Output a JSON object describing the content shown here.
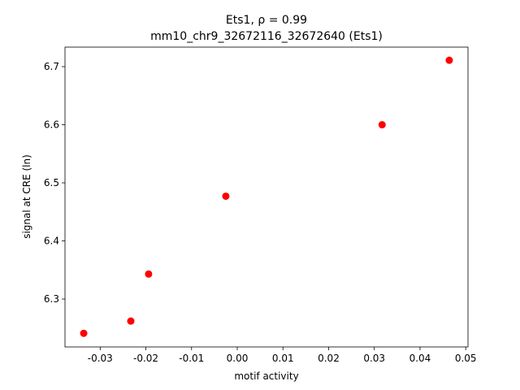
{
  "chart_data": {
    "type": "scatter",
    "title": "Ets1, ρ = 0.99",
    "subtitle": "mm10_chr9_32672116_32672640 (Ets1)",
    "xlabel": "motif activity",
    "ylabel": "signal at CRE (ln)",
    "color": "#ff0000",
    "x": [
      -0.0336,
      -0.0233,
      -0.0194,
      -0.0025,
      0.0317,
      0.0464
    ],
    "values": [
      6.241,
      6.262,
      6.343,
      6.477,
      6.6,
      6.711
    ],
    "xlim": [
      -0.0377,
      0.0505
    ],
    "ylim": [
      6.2175,
      6.7336
    ],
    "xticks": [
      -0.03,
      -0.02,
      -0.01,
      {
        "value": 0,
        "label": "0.00"
      },
      0.01,
      0.02,
      0.03,
      0.04,
      0.05
    ],
    "yticks": [
      6.3,
      6.4,
      6.5,
      6.6,
      6.7
    ]
  }
}
